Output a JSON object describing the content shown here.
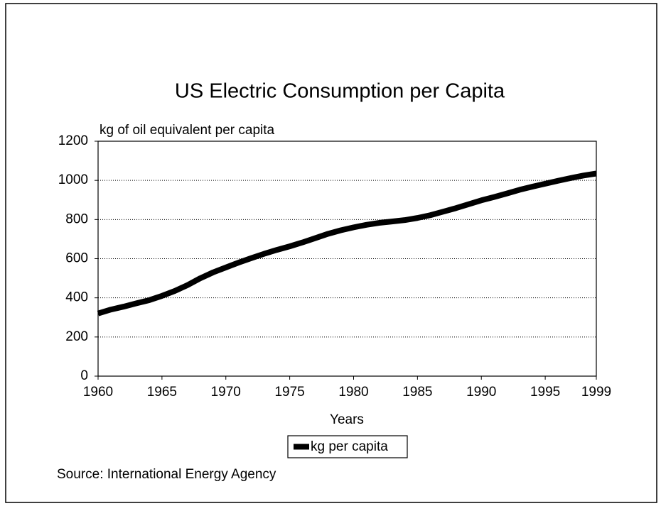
{
  "chart_data": {
    "type": "line",
    "title": "US Electric Consumption per Capita",
    "y_label": "kg of oil equivalent per capita",
    "x_label": "Years",
    "source": "Source: International Energy Agency",
    "x": [
      1960,
      1961,
      1962,
      1963,
      1964,
      1965,
      1966,
      1967,
      1968,
      1969,
      1970,
      1971,
      1972,
      1973,
      1974,
      1975,
      1976,
      1977,
      1978,
      1979,
      1980,
      1981,
      1982,
      1983,
      1984,
      1985,
      1986,
      1987,
      1988,
      1989,
      1990,
      1991,
      1992,
      1993,
      1994,
      1995,
      1996,
      1997,
      1998,
      1999
    ],
    "series": [
      {
        "name": "kg per capita",
        "color": "#000000",
        "values": [
          320,
          340,
          355,
          372,
          388,
          410,
          435,
          465,
          500,
          530,
          555,
          580,
          603,
          625,
          645,
          663,
          683,
          705,
          727,
          745,
          760,
          773,
          783,
          790,
          797,
          808,
          822,
          840,
          858,
          878,
          898,
          915,
          933,
          952,
          968,
          983,
          998,
          1012,
          1025,
          1035
        ]
      }
    ],
    "xlim": [
      1960,
      1999
    ],
    "xticks": [
      1960,
      1965,
      1970,
      1975,
      1980,
      1985,
      1990,
      1995,
      1999
    ],
    "ylim": [
      0,
      1200
    ],
    "yticks": [
      0,
      200,
      400,
      600,
      800,
      1000,
      1200
    ],
    "grid": true,
    "legend": "bottom"
  }
}
